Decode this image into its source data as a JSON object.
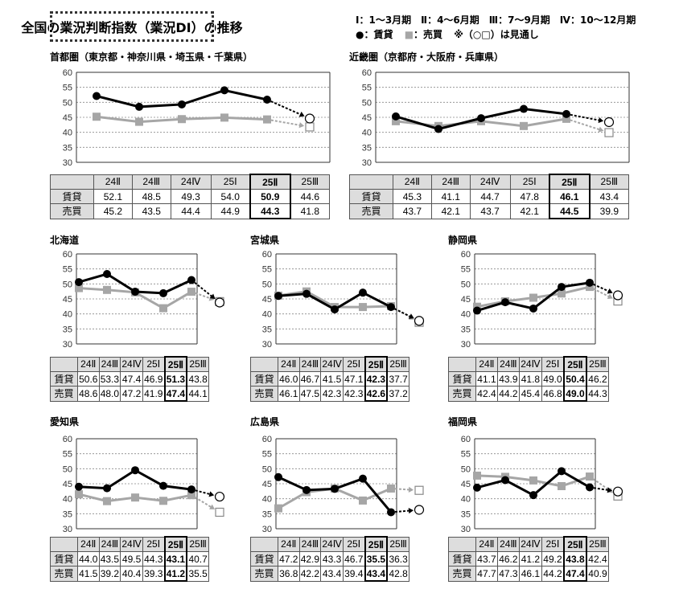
{
  "title": "全国の業況判断指数（業況DI）の推移",
  "legend": {
    "periods": "Ⅰ：1～3月期　Ⅱ：4～6月期　Ⅲ：7～9月期　Ⅳ：10～12月期",
    "rent_marker": "●",
    "rent_label": "：賃貸",
    "sale_marker": "■",
    "sale_label": "：売買",
    "note": "※（○□）は見通し"
  },
  "colors": {
    "rent": "#000000",
    "sale": "#a6a6a6",
    "header_bg": "#dddddd"
  },
  "chart_data": [
    {
      "type": "line",
      "title": "首都圏（東京都・神奈川県・埼玉県・千葉県）",
      "categories": [
        "24Ⅱ",
        "24Ⅲ",
        "24Ⅳ",
        "25Ⅰ",
        "25Ⅱ",
        "25Ⅲ"
      ],
      "ylim": [
        30,
        60
      ],
      "yticks": [
        30,
        35,
        40,
        45,
        50,
        55,
        60
      ],
      "series": [
        {
          "name": "賃貸",
          "values": [
            52.1,
            48.5,
            49.3,
            54.0,
            50.9,
            44.6
          ]
        },
        {
          "name": "売買",
          "values": [
            45.2,
            43.5,
            44.4,
            44.9,
            44.3,
            41.8
          ]
        }
      ],
      "forecast_index": 5,
      "highlight_index": 4
    },
    {
      "type": "line",
      "title": "近畿圏（京都府・大阪府・兵庫県）",
      "categories": [
        "24Ⅱ",
        "24Ⅲ",
        "24Ⅳ",
        "25Ⅰ",
        "25Ⅱ",
        "25Ⅲ"
      ],
      "ylim": [
        30,
        60
      ],
      "yticks": [
        30,
        35,
        40,
        45,
        50,
        55,
        60
      ],
      "series": [
        {
          "name": "賃貸",
          "values": [
            45.3,
            41.1,
            44.7,
            47.8,
            46.1,
            43.4
          ]
        },
        {
          "name": "売買",
          "values": [
            43.7,
            42.1,
            43.7,
            42.1,
            44.5,
            39.9
          ]
        }
      ],
      "forecast_index": 5,
      "highlight_index": 4
    },
    {
      "type": "line",
      "title": "北海道",
      "categories": [
        "24Ⅱ",
        "24Ⅲ",
        "24Ⅳ",
        "25Ⅰ",
        "25Ⅱ",
        "25Ⅲ"
      ],
      "ylim": [
        30,
        60
      ],
      "yticks": [
        30,
        35,
        40,
        45,
        50,
        55,
        60
      ],
      "series": [
        {
          "name": "賃貸",
          "values": [
            50.6,
            53.3,
            47.4,
            46.9,
            51.3,
            43.8
          ]
        },
        {
          "name": "売買",
          "values": [
            48.6,
            48.0,
            47.2,
            41.9,
            47.4,
            44.1
          ]
        }
      ],
      "forecast_index": 5,
      "highlight_index": 4
    },
    {
      "type": "line",
      "title": "宮城県",
      "categories": [
        "24Ⅱ",
        "24Ⅲ",
        "24Ⅳ",
        "25Ⅰ",
        "25Ⅱ",
        "25Ⅲ"
      ],
      "ylim": [
        30,
        60
      ],
      "yticks": [
        30,
        35,
        40,
        45,
        50,
        55,
        60
      ],
      "series": [
        {
          "name": "賃貸",
          "values": [
            46.0,
            46.7,
            41.5,
            47.1,
            42.3,
            37.7
          ]
        },
        {
          "name": "売買",
          "values": [
            46.1,
            47.5,
            42.3,
            42.3,
            42.6,
            37.2
          ]
        }
      ],
      "forecast_index": 5,
      "highlight_index": 4
    },
    {
      "type": "line",
      "title": "静岡県",
      "categories": [
        "24Ⅱ",
        "24Ⅲ",
        "24Ⅳ",
        "25Ⅰ",
        "25Ⅱ",
        "25Ⅲ"
      ],
      "ylim": [
        30,
        60
      ],
      "yticks": [
        30,
        35,
        40,
        45,
        50,
        55,
        60
      ],
      "series": [
        {
          "name": "賃貸",
          "values": [
            41.1,
            43.9,
            41.8,
            49.0,
            50.4,
            46.2
          ]
        },
        {
          "name": "売買",
          "values": [
            42.4,
            44.2,
            45.4,
            46.8,
            49.0,
            44.3
          ]
        }
      ],
      "forecast_index": 5,
      "highlight_index": 4
    },
    {
      "type": "line",
      "title": "愛知県",
      "categories": [
        "24Ⅱ",
        "24Ⅲ",
        "24Ⅳ",
        "25Ⅰ",
        "25Ⅱ",
        "25Ⅲ"
      ],
      "ylim": [
        30,
        60
      ],
      "yticks": [
        30,
        35,
        40,
        45,
        50,
        55,
        60
      ],
      "series": [
        {
          "name": "賃貸",
          "values": [
            44.0,
            43.5,
            49.5,
            44.3,
            43.1,
            40.7
          ]
        },
        {
          "name": "売買",
          "values": [
            41.5,
            39.2,
            40.4,
            39.3,
            41.2,
            35.5
          ]
        }
      ],
      "forecast_index": 5,
      "highlight_index": 4
    },
    {
      "type": "line",
      "title": "広島県",
      "categories": [
        "24Ⅱ",
        "24Ⅲ",
        "24Ⅳ",
        "25Ⅰ",
        "25Ⅱ",
        "25Ⅲ"
      ],
      "ylim": [
        30,
        60
      ],
      "yticks": [
        30,
        35,
        40,
        45,
        50,
        55,
        60
      ],
      "series": [
        {
          "name": "賃貸",
          "values": [
            47.2,
            42.9,
            43.3,
            46.7,
            35.5,
            36.3
          ]
        },
        {
          "name": "売買",
          "values": [
            36.8,
            42.2,
            43.4,
            39.4,
            43.4,
            42.8
          ]
        }
      ],
      "forecast_index": 5,
      "highlight_index": 4
    },
    {
      "type": "line",
      "title": "福岡県",
      "categories": [
        "24Ⅱ",
        "24Ⅲ",
        "24Ⅳ",
        "25Ⅰ",
        "25Ⅱ",
        "25Ⅲ"
      ],
      "ylim": [
        30,
        60
      ],
      "yticks": [
        30,
        35,
        40,
        45,
        50,
        55,
        60
      ],
      "series": [
        {
          "name": "賃貸",
          "values": [
            43.7,
            46.2,
            41.2,
            49.2,
            43.8,
            42.4
          ]
        },
        {
          "name": "売買",
          "values": [
            47.7,
            47.3,
            46.1,
            44.2,
            47.4,
            40.9
          ]
        }
      ],
      "forecast_index": 5,
      "highlight_index": 4
    }
  ]
}
